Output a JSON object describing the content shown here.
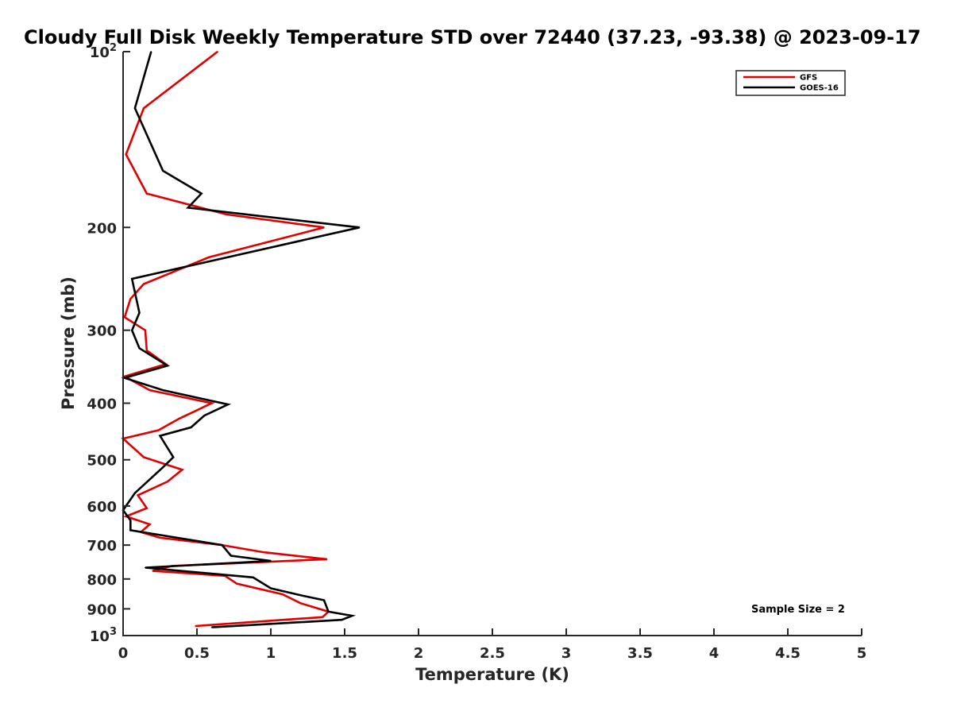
{
  "chart_data": {
    "type": "line",
    "title": "Cloudy Full Disk Weekly Temperature STD over 72440 (37.23, -93.38) @ 2023-09-17",
    "xlabel": "Temperature (K)",
    "ylabel": "Pressure (mb)",
    "xlim": [
      0,
      5
    ],
    "ylim": [
      100,
      1000
    ],
    "y_scale": "log",
    "y_reversed": true,
    "grid": false,
    "legend_position": "top-right",
    "x_ticks": [
      {
        "value": 0,
        "label": "0"
      },
      {
        "value": 0.5,
        "label": "0.5"
      },
      {
        "value": 1,
        "label": "1"
      },
      {
        "value": 1.5,
        "label": "1.5"
      },
      {
        "value": 2,
        "label": "2"
      },
      {
        "value": 2.5,
        "label": "2.5"
      },
      {
        "value": 3,
        "label": "3"
      },
      {
        "value": 3.5,
        "label": "3.5"
      },
      {
        "value": 4,
        "label": "4"
      },
      {
        "value": 4.5,
        "label": "4.5"
      },
      {
        "value": 5,
        "label": "5"
      }
    ],
    "y_ticks": [
      {
        "value": 100,
        "base": "10",
        "exp": "2"
      },
      {
        "value": 200,
        "label": "200"
      },
      {
        "value": 300,
        "label": "300"
      },
      {
        "value": 400,
        "label": "400"
      },
      {
        "value": 500,
        "label": "500"
      },
      {
        "value": 600,
        "label": "600"
      },
      {
        "value": 700,
        "label": "700"
      },
      {
        "value": 800,
        "label": "800"
      },
      {
        "value": 900,
        "label": "900"
      },
      {
        "value": 1000,
        "base": "10",
        "exp": "3"
      }
    ],
    "annotation": "Sample Size = 2",
    "series": [
      {
        "name": "GFS",
        "color": "#e00000",
        "points": [
          {
            "x": 0.64,
            "p": 100
          },
          {
            "x": 0.14,
            "p": 125
          },
          {
            "x": 0.02,
            "p": 150
          },
          {
            "x": 0.16,
            "p": 175
          },
          {
            "x": 0.7,
            "p": 190
          },
          {
            "x": 1.36,
            "p": 200
          },
          {
            "x": 0.58,
            "p": 225
          },
          {
            "x": 0.14,
            "p": 250
          },
          {
            "x": 0.05,
            "p": 265
          },
          {
            "x": 0.01,
            "p": 285
          },
          {
            "x": 0.15,
            "p": 300
          },
          {
            "x": 0.16,
            "p": 325
          },
          {
            "x": 0.29,
            "p": 343
          },
          {
            "x": 0.01,
            "p": 360
          },
          {
            "x": 0.18,
            "p": 380
          },
          {
            "x": 0.6,
            "p": 400
          },
          {
            "x": 0.38,
            "p": 425
          },
          {
            "x": 0.24,
            "p": 445
          },
          {
            "x": 0.0,
            "p": 460
          },
          {
            "x": 0.14,
            "p": 495
          },
          {
            "x": 0.4,
            "p": 520
          },
          {
            "x": 0.3,
            "p": 545
          },
          {
            "x": 0.1,
            "p": 575
          },
          {
            "x": 0.16,
            "p": 605
          },
          {
            "x": 0.02,
            "p": 625
          },
          {
            "x": 0.18,
            "p": 645
          },
          {
            "x": 0.12,
            "p": 665
          },
          {
            "x": 0.25,
            "p": 680
          },
          {
            "x": 0.67,
            "p": 700
          },
          {
            "x": 0.95,
            "p": 720
          },
          {
            "x": 1.38,
            "p": 740
          },
          {
            "x": 0.33,
            "p": 760
          },
          {
            "x": 0.2,
            "p": 775
          },
          {
            "x": 0.69,
            "p": 790
          },
          {
            "x": 0.77,
            "p": 815
          },
          {
            "x": 1.08,
            "p": 850
          },
          {
            "x": 1.2,
            "p": 880
          },
          {
            "x": 1.39,
            "p": 910
          },
          {
            "x": 1.35,
            "p": 930
          },
          {
            "x": 0.49,
            "p": 963
          }
        ]
      },
      {
        "name": "GOES-16",
        "color": "#000000",
        "points": [
          {
            "x": 0.19,
            "p": 100
          },
          {
            "x": 0.08,
            "p": 125
          },
          {
            "x": 0.27,
            "p": 160
          },
          {
            "x": 0.53,
            "p": 175
          },
          {
            "x": 0.44,
            "p": 185
          },
          {
            "x": 1.6,
            "p": 200
          },
          {
            "x": 0.06,
            "p": 245
          },
          {
            "x": 0.11,
            "p": 280
          },
          {
            "x": 0.06,
            "p": 300
          },
          {
            "x": 0.11,
            "p": 322
          },
          {
            "x": 0.3,
            "p": 345
          },
          {
            "x": 0.01,
            "p": 362
          },
          {
            "x": 0.27,
            "p": 380
          },
          {
            "x": 0.71,
            "p": 402
          },
          {
            "x": 0.55,
            "p": 420
          },
          {
            "x": 0.46,
            "p": 440
          },
          {
            "x": 0.25,
            "p": 455
          },
          {
            "x": 0.34,
            "p": 495
          },
          {
            "x": 0.27,
            "p": 515
          },
          {
            "x": 0.08,
            "p": 570
          },
          {
            "x": 0.0,
            "p": 610
          },
          {
            "x": 0.05,
            "p": 635
          },
          {
            "x": 0.05,
            "p": 660
          },
          {
            "x": 0.67,
            "p": 700
          },
          {
            "x": 0.73,
            "p": 730
          },
          {
            "x": 1.0,
            "p": 745
          },
          {
            "x": 0.15,
            "p": 765
          },
          {
            "x": 0.88,
            "p": 795
          },
          {
            "x": 1.0,
            "p": 830
          },
          {
            "x": 1.22,
            "p": 855
          },
          {
            "x": 1.36,
            "p": 870
          },
          {
            "x": 1.39,
            "p": 910
          },
          {
            "x": 1.55,
            "p": 925
          },
          {
            "x": 1.48,
            "p": 940
          },
          {
            "x": 0.6,
            "p": 968
          }
        ]
      }
    ]
  }
}
